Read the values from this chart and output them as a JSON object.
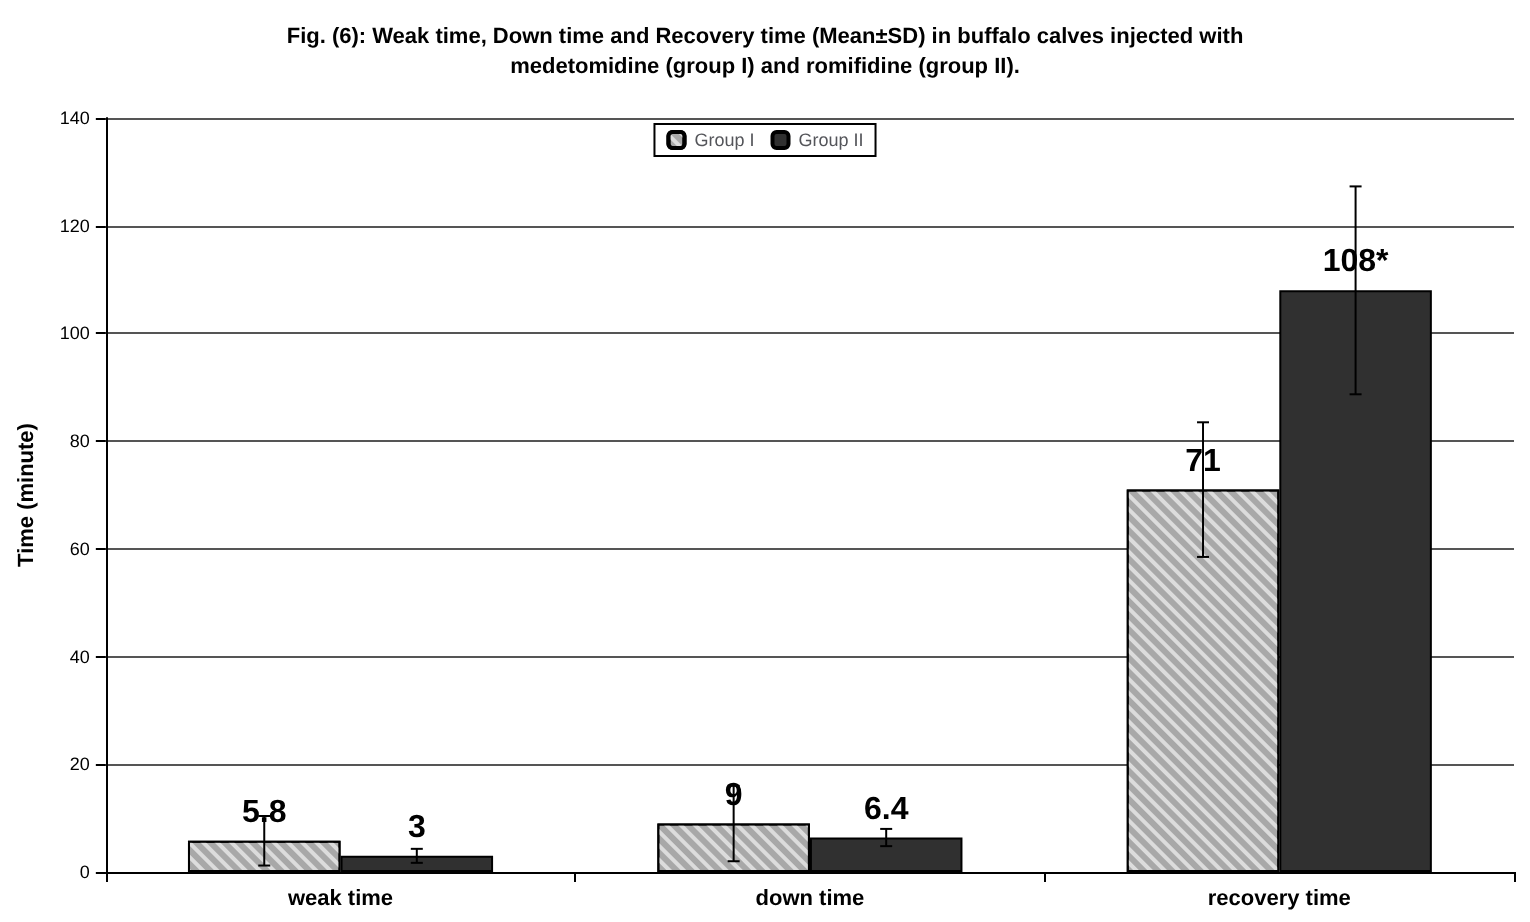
{
  "chart_data": {
    "type": "bar",
    "title": "Fig. (6): Weak time, Down time and Recovery time (Mean±SD) in buffalo calves injected with\nmedetomidine (group I) and romifidine (group II).",
    "ylabel": "Time (minute)",
    "categories": [
      "weak time",
      "down time",
      "recovery time"
    ],
    "series": [
      {
        "name": "Group I",
        "color": "#a8a8a8",
        "values": [
          5.8,
          9,
          71
        ],
        "errors": [
          4.6,
          7,
          12.5
        ],
        "value_labels": [
          "5.8",
          "9",
          "71"
        ]
      },
      {
        "name": "Group II",
        "color": "#303030",
        "values": [
          3,
          6.4,
          108
        ],
        "errors": [
          1.3,
          1.6,
          19.3
        ],
        "value_labels": [
          "3",
          "6.4",
          "108*"
        ]
      }
    ],
    "ylim": [
      0,
      140
    ],
    "yticks": [
      0,
      20,
      40,
      60,
      80,
      100,
      120,
      140
    ],
    "grid": "y",
    "legend": "top"
  }
}
